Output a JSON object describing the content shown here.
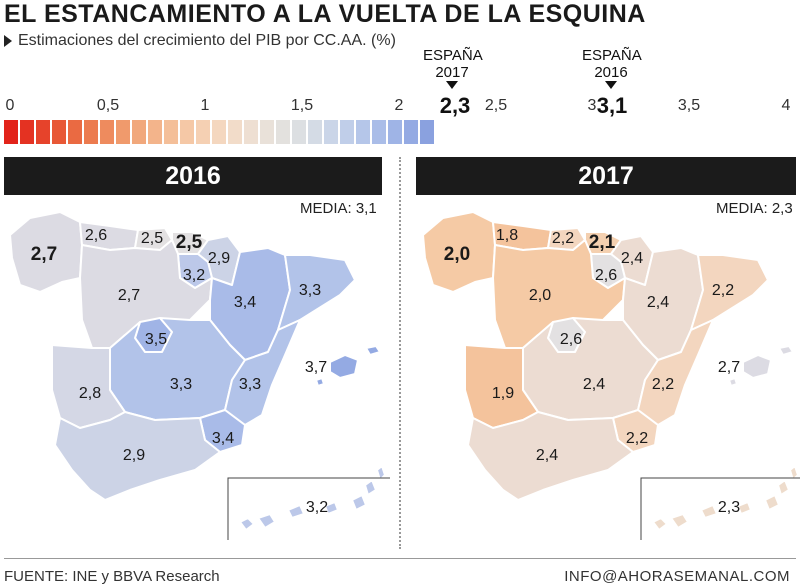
{
  "title": "EL ESTANCAMIENTO A LA VUELTA DE LA ESQUINA",
  "subtitle": "Estimaciones del crecimiento del PIB por CC.AA. (%)",
  "markers": [
    {
      "line1": "ESPAÑA",
      "line2": "2017",
      "value": "2,3"
    },
    {
      "line1": "ESPAÑA",
      "line2": "2016",
      "value": "3,1"
    }
  ],
  "scale_ticks": [
    "0",
    "0,5",
    "1",
    "1,5",
    "2",
    "2,3",
    "2,5",
    "3",
    "3,1",
    "3,5",
    "4"
  ],
  "scale_colors": [
    "#e2231a",
    "#e43222",
    "#e6432b",
    "#e85836",
    "#ea6a42",
    "#ec7b4f",
    "#ee8b5e",
    "#f09a6c",
    "#f1a87c",
    "#f3b48b",
    "#f4bf99",
    "#f5c8a6",
    "#f5d0b3",
    "#f4d7bf",
    "#f2dcc9",
    "#eedfd2",
    "#e9e1d9",
    "#e3e1de",
    "#dcdfe2",
    "#d4dbe5",
    "#cad5e8",
    "#c0cee9",
    "#b5c6e9",
    "#aabde8",
    "#9fb4e6",
    "#94aae3",
    "#8aa1df"
  ],
  "panels": [
    {
      "year": "2016",
      "media": "MEDIA: 3,1",
      "regions": {
        "galicia": {
          "value": "2,7",
          "color": "#dcdbe3"
        },
        "asturias": {
          "value": "2,6",
          "color": "#dcdbe3"
        },
        "cantabria": {
          "value": "2,5",
          "color": "#e3e1e2"
        },
        "pais_vasco": {
          "value": "2,5",
          "color": "#e3e1e2"
        },
        "navarra": {
          "value": "2,9",
          "color": "#ccd3e6"
        },
        "rioja": {
          "value": "3,2",
          "color": "#bcc8e9"
        },
        "castilla_leon": {
          "value": "2,7",
          "color": "#dcdbe3"
        },
        "aragon": {
          "value": "3,4",
          "color": "#a9bbe8"
        },
        "cataluna": {
          "value": "3,3",
          "color": "#b2c3e9"
        },
        "madrid": {
          "value": "3,5",
          "color": "#a0b4e6"
        },
        "castilla_mancha": {
          "value": "3,3",
          "color": "#b2c3e9"
        },
        "valencia": {
          "value": "3,3",
          "color": "#b2c3e9"
        },
        "extremadura": {
          "value": "2,8",
          "color": "#d4d7e5"
        },
        "murcia": {
          "value": "3,4",
          "color": "#a9bbe8"
        },
        "andalucia": {
          "value": "2,9",
          "color": "#ccd3e6"
        },
        "baleares": {
          "value": "3,7",
          "color": "#94aae3"
        },
        "canarias": {
          "value": "3,2",
          "color": "#bcc8e9"
        }
      }
    },
    {
      "year": "2017",
      "media": "MEDIA: 2,3",
      "regions": {
        "galicia": {
          "value": "2,0",
          "color": "#f5caa5"
        },
        "asturias": {
          "value": "1,8",
          "color": "#f4c39c"
        },
        "cantabria": {
          "value": "2,2",
          "color": "#f3d6bf"
        },
        "pais_vasco": {
          "value": "2,1",
          "color": "#f4d0b0"
        },
        "navarra": {
          "value": "2,4",
          "color": "#ecdcd2"
        },
        "rioja": {
          "value": "2,6",
          "color": "#e3e1e2"
        },
        "castilla_leon": {
          "value": "2,0",
          "color": "#f5caa5"
        },
        "aragon": {
          "value": "2,4",
          "color": "#ecdcd2"
        },
        "cataluna": {
          "value": "2,2",
          "color": "#f3d6bf"
        },
        "madrid": {
          "value": "2,6",
          "color": "#e3e1e2"
        },
        "castilla_mancha": {
          "value": "2,4",
          "color": "#ecdcd2"
        },
        "valencia": {
          "value": "2,2",
          "color": "#f3d6bf"
        },
        "extremadura": {
          "value": "1,9",
          "color": "#f4c39c"
        },
        "murcia": {
          "value": "2,2",
          "color": "#f3d6bf"
        },
        "andalucia": {
          "value": "2,4",
          "color": "#ecdcd2"
        },
        "baleares": {
          "value": "2,7",
          "color": "#dcdbe3"
        },
        "canarias": {
          "value": "2,3",
          "color": "#eedccc"
        }
      }
    }
  ],
  "footer": {
    "source": "FUENTE: INE y BBVA Research",
    "credit": "INFO@AHORASEMANAL.COM"
  }
}
